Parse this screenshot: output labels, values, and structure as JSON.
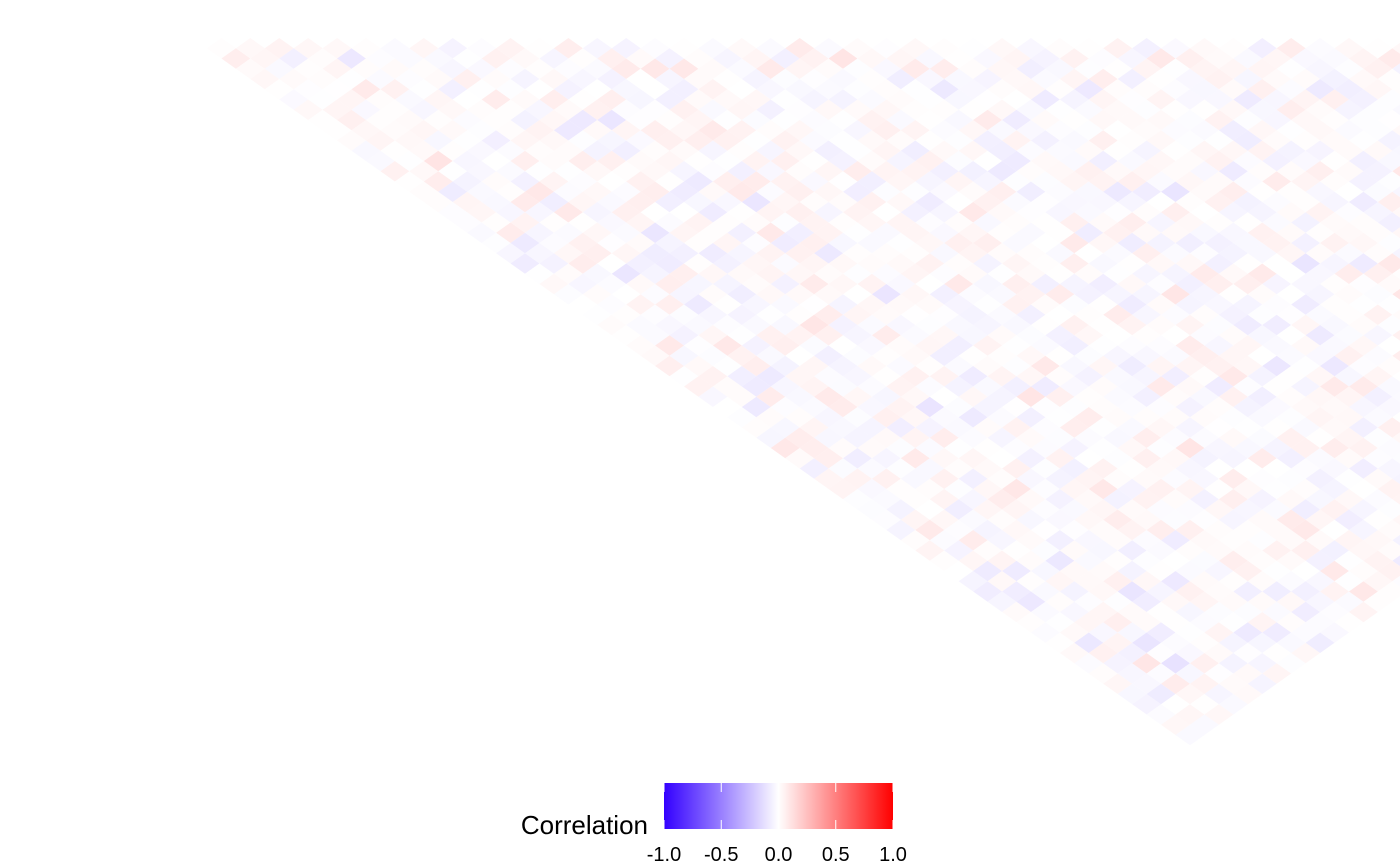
{
  "chart_data": {
    "type": "heatmap",
    "subtype": "triangular-correlation-matrix",
    "title": "",
    "xlabel": "",
    "ylabel": "",
    "grid": false,
    "n_variables": 69,
    "value_range": [
      -1.0,
      1.0
    ],
    "colorscale": {
      "low": "#3300ff",
      "mid": "#ffffff",
      "high": "#ff0000"
    },
    "typical_abs_correlation": 0.05,
    "max_abs_correlation": 0.2,
    "legend": {
      "title": "Correlation",
      "position": "bottom",
      "ticks": [
        "-1.0",
        "-0.5",
        "0.0",
        "0.5",
        "1.0"
      ],
      "tick_values": [
        -1.0,
        -0.5,
        0.0,
        0.5,
        1.0
      ]
    }
  }
}
